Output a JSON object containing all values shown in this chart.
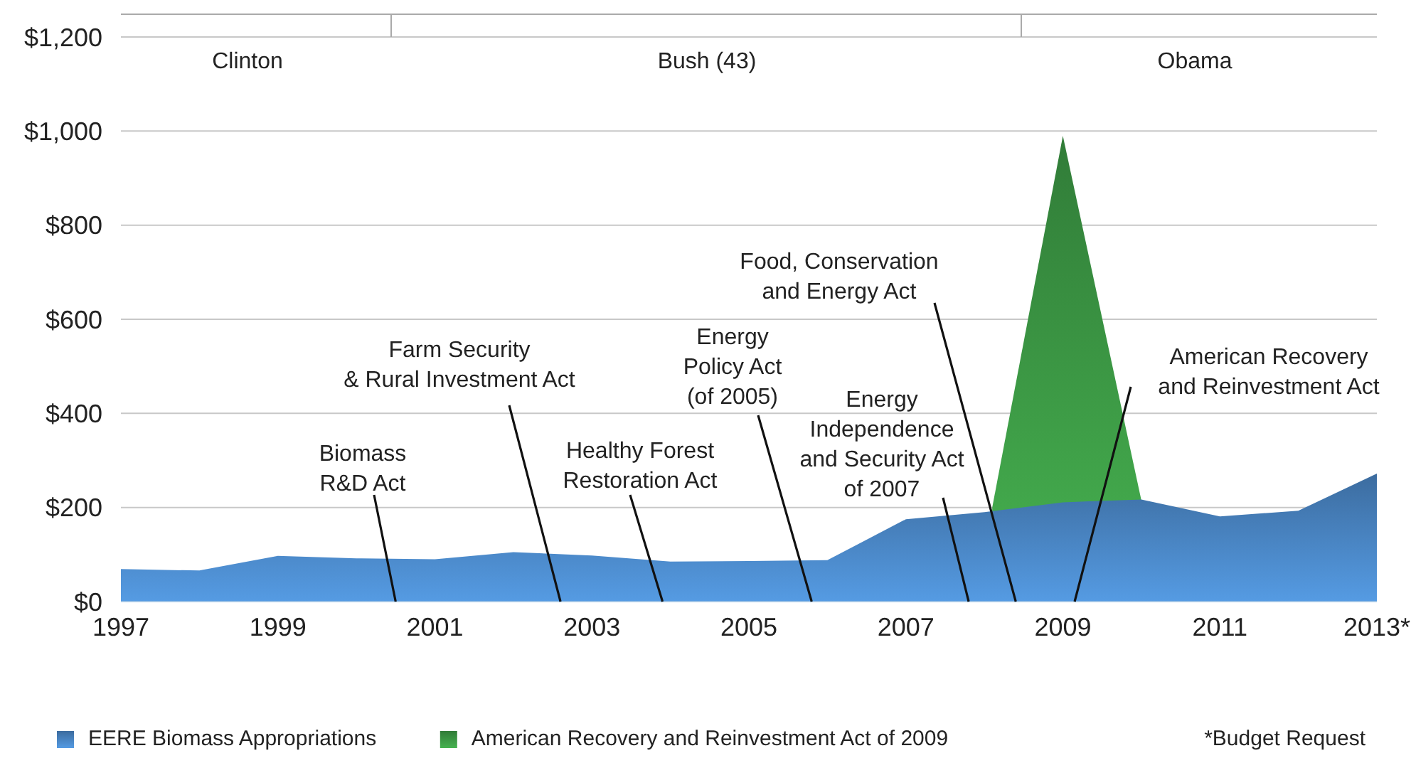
{
  "chart_data": {
    "type": "area",
    "x": [
      1997,
      1998,
      1999,
      2000,
      2001,
      2002,
      2003,
      2004,
      2005,
      2006,
      2007,
      2008,
      2009,
      2010,
      2011,
      2012,
      2013
    ],
    "series": [
      {
        "name": "American Recovery and Reinvestment Act of 2009",
        "color": "#3d9a45",
        "x": [
          2008.1,
          2009,
          2010
        ],
        "values": [
          200,
          990,
          215
        ]
      },
      {
        "name": "EERE Biomass Appropriations",
        "color": "#4a86c5",
        "values": [
          69,
          66,
          97,
          92,
          90,
          105,
          98,
          85,
          86,
          88,
          175,
          190,
          211,
          217,
          181,
          193,
          272
        ]
      }
    ],
    "xlim": [
      1997,
      2013
    ],
    "xticks": [
      1997,
      1999,
      2001,
      2003,
      2005,
      2007,
      2009,
      2011,
      {
        "value": 2013,
        "label": "2013*"
      }
    ],
    "ylim": [
      0,
      1200
    ],
    "yticks": [
      {
        "value": 0,
        "label": "$0"
      },
      {
        "value": 200,
        "label": "$200"
      },
      {
        "value": 400,
        "label": "$400"
      },
      {
        "value": 600,
        "label": "$600"
      },
      {
        "value": 800,
        "label": "$800"
      },
      {
        "value": 1000,
        "label": "$1,000"
      },
      {
        "value": 1200,
        "label": "$1,200"
      }
    ],
    "grid": "y",
    "legend": "bottom",
    "annotations": [
      {
        "text": "Biomass\nR&D Act",
        "x": 2000.5,
        "y": 0
      },
      {
        "text": "Farm Security\n& Rural Investment Act",
        "x": 2002.6,
        "y": 0
      },
      {
        "text": "Healthy Forest\nRestoration Act",
        "x": 2003.9,
        "y": 0
      },
      {
        "text": "Energy\nPolicy Act\n(of 2005)",
        "x": 2005.8,
        "y": 0
      },
      {
        "text": "Energy\nIndependence\nand Security Act\nof 2007",
        "x": 2007.8,
        "y": 0
      },
      {
        "text": "Food, Conservation\nand Energy Act",
        "x": 2008.4,
        "y": 0
      },
      {
        "text": "American Recovery\nand Reinvestment Act",
        "x": 2009.15,
        "y": 0
      },
      "Clinton",
      "Bush (43)",
      "Obama",
      "*Budget Request"
    ]
  }
}
